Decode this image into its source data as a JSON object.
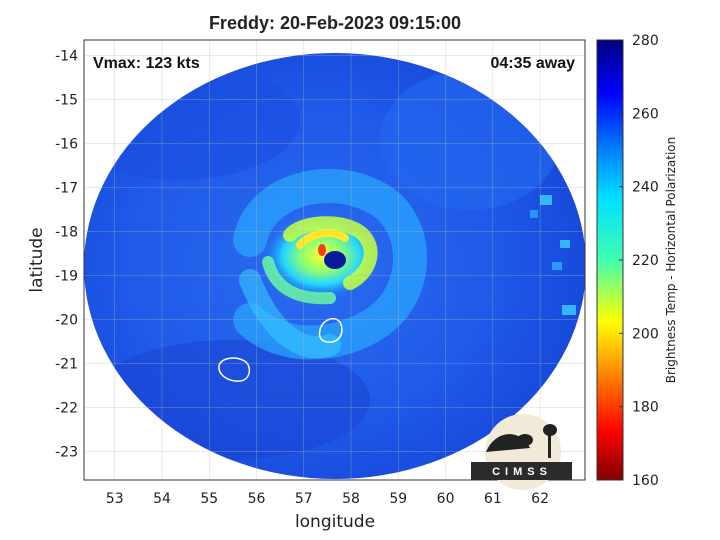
{
  "title": "Freddy: 20-Feb-2023 09:15:00",
  "vmax_text": "Vmax: 123 kts",
  "time_text": "04:35 away",
  "x_axis": {
    "label": "longitude",
    "ticks": [
      53,
      54,
      55,
      56,
      57,
      58,
      59,
      60,
      61,
      62
    ],
    "range": [
      52.35,
      62.95
    ]
  },
  "y_axis": {
    "label": "latitude",
    "ticks": [
      -14,
      -15,
      -16,
      -17,
      -18,
      -19,
      -20,
      -21,
      -22,
      -23
    ],
    "range": [
      -23.65,
      -13.65
    ]
  },
  "colorbar": {
    "label": "Brightness Temp - Horizontal Polarization",
    "ticks": [
      280,
      260,
      240,
      220,
      200,
      180,
      160
    ],
    "range": [
      160,
      280
    ],
    "colormap": "jet"
  },
  "storm": {
    "name": "Freddy",
    "eye_lon": 57.6,
    "eye_lat": -18.95
  },
  "islands": [
    {
      "name_hint": "mauritius-outline",
      "lon": 57.55,
      "lat": -20.25
    },
    {
      "name_hint": "reunion-outline",
      "lon": 55.5,
      "lat": -21.15
    }
  ],
  "logo": {
    "text": "CIMSS"
  },
  "colors": {
    "background": "#ffffff",
    "warm_scene": "#1d57e6",
    "eye": "#0a1a9c",
    "coastline": "#ffffff"
  }
}
